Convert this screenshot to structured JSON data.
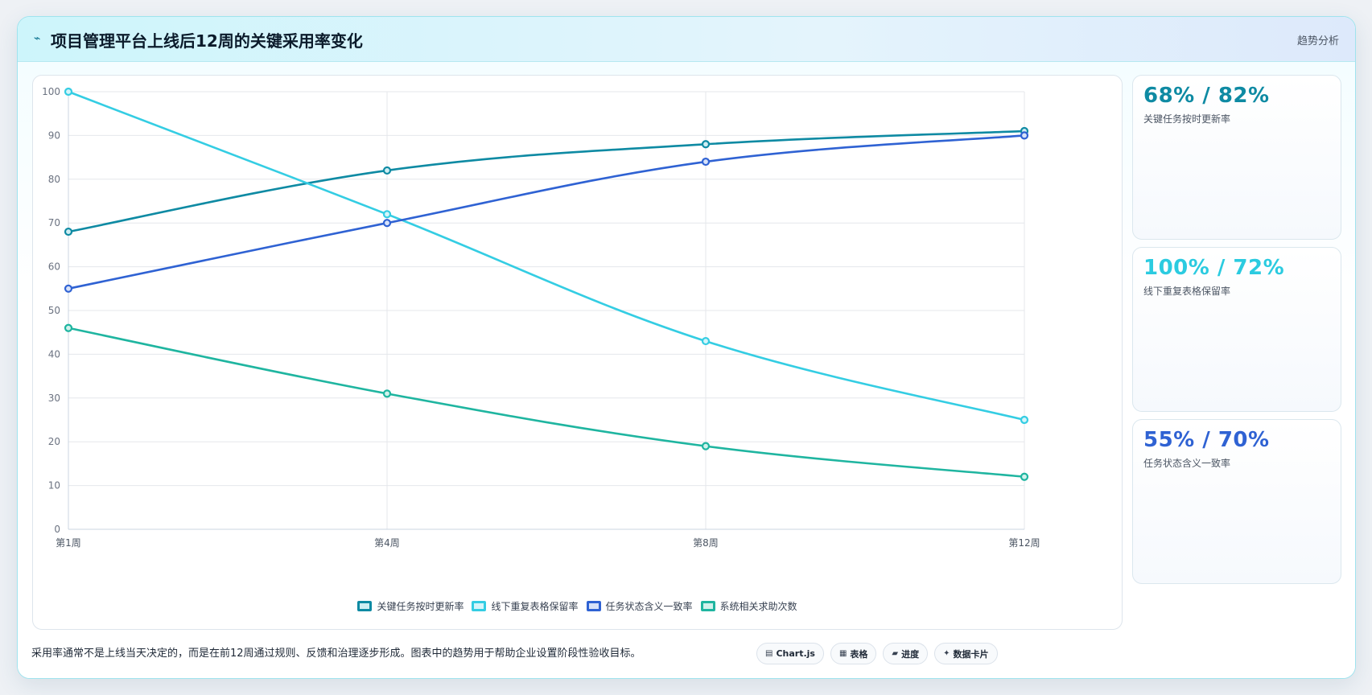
{
  "header": {
    "icon": "sparkline-icon",
    "title": "项目管理平台上线后12周的关键采用率变化",
    "tag": "趋势分析"
  },
  "chart_data": {
    "type": "line",
    "categories": [
      "第1周",
      "第4周",
      "第8周",
      "第12周"
    ],
    "ylim": [
      0,
      100
    ],
    "yticks": [
      0,
      10,
      20,
      30,
      40,
      50,
      60,
      70,
      80,
      90,
      100
    ],
    "grid": true,
    "legend_position": "bottom",
    "series": [
      {
        "name": "关键任务按时更新率",
        "values": [
          68,
          82,
          88,
          91
        ],
        "color": "#0e8aa3",
        "fill": "#cfeef3"
      },
      {
        "name": "线下重复表格保留率",
        "values": [
          100,
          72,
          43,
          25
        ],
        "color": "#34cde3",
        "fill": "#d5f5fa"
      },
      {
        "name": "任务状态含义一致率",
        "values": [
          55,
          70,
          84,
          90
        ],
        "color": "#2f62d3",
        "fill": "#d7e2f9"
      },
      {
        "name": "系统相关求助次数",
        "values": [
          46,
          31,
          19,
          12
        ],
        "color": "#1fb5a0",
        "fill": "#d1f2ec"
      }
    ]
  },
  "cards": [
    {
      "value": "68% / 82%",
      "label": "关键任务按时更新率",
      "color": "#0e8aa3"
    },
    {
      "value": "100% / 72%",
      "label": "线下重复表格保留率",
      "color": "#2bcbe0"
    },
    {
      "value": "55% / 70%",
      "label": "任务状态含义一致率",
      "color": "#2f62d3"
    }
  ],
  "footer": {
    "note": "采用率通常不是上线当天决定的，而是在前12周通过规则、反馈和治理逐步形成。图表中的趋势用于帮助企业设置阶段性验收目标。",
    "chips": [
      {
        "icon": "chart-icon",
        "glyph": "▤",
        "label": "Chart.js"
      },
      {
        "icon": "table-icon",
        "glyph": "▦",
        "label": "表格"
      },
      {
        "icon": "progress-icon",
        "glyph": "▰",
        "label": "进度"
      },
      {
        "icon": "data-card-icon",
        "glyph": "✦",
        "label": "数据卡片"
      }
    ]
  }
}
